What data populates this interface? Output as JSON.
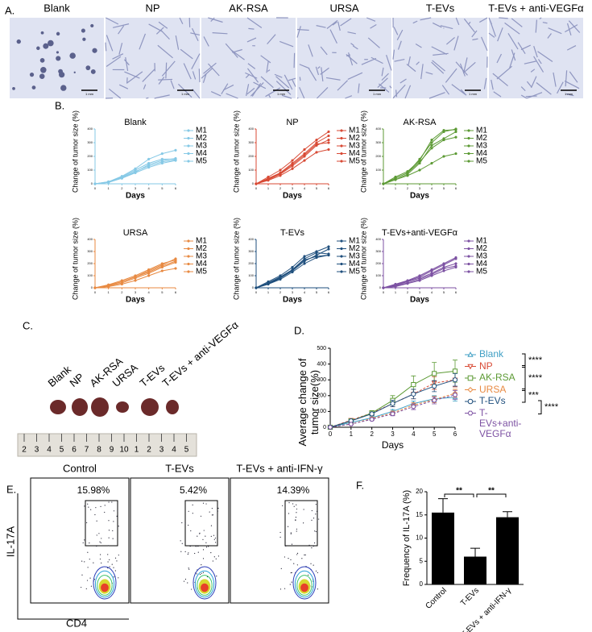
{
  "panel_letters": [
    "A.",
    "B.",
    "C.",
    "D.",
    "E.",
    "F."
  ],
  "panel_a": {
    "labels": [
      "Blank",
      "NP",
      "AK-RSA",
      "URSA",
      "T-EVs",
      "T-EVs + anti-VEGFα"
    ],
    "scale_label": "1 mm"
  },
  "panel_c": {
    "labels": [
      "Blank",
      "NP",
      "AK-RSA",
      "URSA",
      "T-EVs",
      "T-EVs + anti-VEGFα"
    ],
    "ruler": [
      "2",
      "3",
      "4",
      "5",
      "6",
      "7",
      "8",
      "9",
      "10",
      "1",
      "2",
      "3",
      "4",
      "5"
    ]
  },
  "panel_e": {
    "xlabel": "CD4",
    "ylabel": "IL-17A",
    "plots": [
      {
        "title": "Control",
        "gate": "15.98%"
      },
      {
        "title": "T-EVs",
        "gate": "5.42%"
      },
      {
        "title": "T-EVs + anti-IFN-γ",
        "gate": "14.39%"
      }
    ]
  },
  "chart_data": [
    {
      "type": "line",
      "title": "Blank",
      "xlabel": "Days",
      "ylabel": "Change of tumor size (%)",
      "x": [
        0,
        1,
        2,
        3,
        4,
        5,
        6
      ],
      "xlim": [
        0,
        6
      ],
      "ylim": [
        0,
        400
      ],
      "xticks": [
        0,
        1,
        2,
        3,
        4,
        5,
        6
      ],
      "yticks": [
        0,
        100,
        200,
        300,
        400
      ],
      "series": [
        {
          "name": "M1",
          "color": "#86c9e6",
          "values": [
            0,
            10,
            40,
            80,
            120,
            150,
            170
          ]
        },
        {
          "name": "M2",
          "color": "#86c9e6",
          "values": [
            0,
            12,
            45,
            90,
            130,
            160,
            175
          ]
        },
        {
          "name": "M3",
          "color": "#86c9e6",
          "values": [
            0,
            15,
            50,
            100,
            150,
            180,
            180
          ]
        },
        {
          "name": "M4",
          "color": "#86c9e6",
          "values": [
            0,
            10,
            42,
            85,
            140,
            170,
            185
          ]
        },
        {
          "name": "M5",
          "color": "#86c9e6",
          "values": [
            0,
            15,
            55,
            110,
            180,
            220,
            245
          ]
        }
      ]
    },
    {
      "type": "line",
      "title": "NP",
      "xlabel": "Days",
      "ylabel": "Change of tumor size (%)",
      "x": [
        0,
        1,
        2,
        3,
        4,
        5,
        6
      ],
      "xlim": [
        0,
        6
      ],
      "ylim": [
        0,
        400
      ],
      "xticks": [
        0,
        1,
        2,
        3,
        4,
        5,
        6
      ],
      "yticks": [
        0,
        100,
        200,
        300,
        400
      ],
      "series": [
        {
          "name": "M1",
          "color": "#d84a35",
          "values": [
            0,
            40,
            80,
            150,
            220,
            300,
            350
          ]
        },
        {
          "name": "M2",
          "color": "#d84a35",
          "values": [
            0,
            30,
            70,
            130,
            200,
            280,
            320
          ]
        },
        {
          "name": "M3",
          "color": "#d84a35",
          "values": [
            0,
            50,
            100,
            170,
            250,
            320,
            380
          ]
        },
        {
          "name": "M4",
          "color": "#d84a35",
          "values": [
            0,
            35,
            75,
            140,
            210,
            290,
            300
          ]
        },
        {
          "name": "M5",
          "color": "#d84a35",
          "values": [
            0,
            25,
            60,
            110,
            170,
            230,
            250
          ]
        }
      ]
    },
    {
      "type": "line",
      "title": "AK-RSA",
      "xlabel": "Days",
      "ylabel": "Change of tumor size (%)",
      "x": [
        0,
        1,
        2,
        3,
        4,
        5,
        6
      ],
      "xlim": [
        0,
        6
      ],
      "ylim": [
        0,
        400
      ],
      "xticks": [
        0,
        1,
        2,
        3,
        4,
        5,
        6
      ],
      "yticks": [
        0,
        100,
        200,
        300,
        400
      ],
      "series": [
        {
          "name": "M1",
          "color": "#5c9a34",
          "values": [
            0,
            40,
            80,
            180,
            300,
            380,
            400
          ]
        },
        {
          "name": "M2",
          "color": "#5c9a34",
          "values": [
            0,
            50,
            90,
            170,
            320,
            390,
            395
          ]
        },
        {
          "name": "M3",
          "color": "#5c9a34",
          "values": [
            0,
            30,
            70,
            150,
            280,
            330,
            380
          ]
        },
        {
          "name": "M4",
          "color": "#5c9a34",
          "values": [
            0,
            40,
            80,
            160,
            260,
            320,
            340
          ]
        },
        {
          "name": "M5",
          "color": "#5c9a34",
          "values": [
            0,
            30,
            60,
            100,
            150,
            200,
            220
          ]
        }
      ]
    },
    {
      "type": "line",
      "title": "URSA",
      "xlabel": "Days",
      "ylabel": "Change of tumor size (%)",
      "x": [
        0,
        1,
        2,
        3,
        4,
        5,
        6
      ],
      "xlim": [
        0,
        6
      ],
      "ylim": [
        0,
        400
      ],
      "xticks": [
        0,
        1,
        2,
        3,
        4,
        5,
        6
      ],
      "yticks": [
        0,
        100,
        200,
        300,
        400
      ],
      "series": [
        {
          "name": "M1",
          "color": "#e88a42",
          "values": [
            0,
            20,
            50,
            90,
            140,
            190,
            240
          ]
        },
        {
          "name": "M2",
          "color": "#e88a42",
          "values": [
            0,
            25,
            60,
            100,
            150,
            200,
            230
          ]
        },
        {
          "name": "M3",
          "color": "#e88a42",
          "values": [
            0,
            15,
            40,
            80,
            120,
            170,
            210
          ]
        },
        {
          "name": "M4",
          "color": "#e88a42",
          "values": [
            0,
            20,
            50,
            90,
            130,
            180,
            220
          ]
        },
        {
          "name": "M5",
          "color": "#e88a42",
          "values": [
            0,
            10,
            30,
            60,
            100,
            140,
            160
          ]
        }
      ]
    },
    {
      "type": "line",
      "title": "T-EVs",
      "xlabel": "Days",
      "ylabel": "Change of tumor size (%)",
      "x": [
        0,
        1,
        2,
        3,
        4,
        5,
        6
      ],
      "xlim": [
        0,
        6
      ],
      "ylim": [
        0,
        400
      ],
      "xticks": [
        0,
        1,
        2,
        3,
        4,
        5,
        6
      ],
      "yticks": [
        0,
        100,
        200,
        300,
        400
      ],
      "series": [
        {
          "name": "M1",
          "color": "#1f4f7d",
          "values": [
            0,
            50,
            100,
            170,
            260,
            300,
            340
          ]
        },
        {
          "name": "M2",
          "color": "#1f4f7d",
          "values": [
            0,
            40,
            90,
            150,
            240,
            290,
            280
          ]
        },
        {
          "name": "M3",
          "color": "#1f4f7d",
          "values": [
            0,
            30,
            80,
            140,
            220,
            270,
            320
          ]
        },
        {
          "name": "M4",
          "color": "#1f4f7d",
          "values": [
            0,
            35,
            85,
            145,
            230,
            260,
            270
          ]
        },
        {
          "name": "M5",
          "color": "#1f4f7d",
          "values": [
            0,
            30,
            70,
            130,
            200,
            250,
            270
          ]
        }
      ]
    },
    {
      "type": "line",
      "title": "T-EVs+anti-VEGFα",
      "xlabel": "Days",
      "ylabel": "Change of tumor size (%)",
      "x": [
        0,
        1,
        2,
        3,
        4,
        5,
        6
      ],
      "xlim": [
        0,
        6
      ],
      "ylim": [
        0,
        400
      ],
      "xticks": [
        0,
        1,
        2,
        3,
        4,
        5,
        6
      ],
      "yticks": [
        0,
        100,
        200,
        300,
        400
      ],
      "series": [
        {
          "name": "M1",
          "color": "#7d52a3",
          "values": [
            0,
            30,
            60,
            100,
            150,
            200,
            250
          ]
        },
        {
          "name": "M2",
          "color": "#7d52a3",
          "values": [
            0,
            25,
            55,
            90,
            140,
            190,
            240
          ]
        },
        {
          "name": "M3",
          "color": "#7d52a3",
          "values": [
            0,
            20,
            50,
            80,
            120,
            170,
            200
          ]
        },
        {
          "name": "M4",
          "color": "#7d52a3",
          "values": [
            0,
            15,
            40,
            70,
            110,
            160,
            180
          ]
        },
        {
          "name": "M5",
          "color": "#7d52a3",
          "values": [
            0,
            10,
            35,
            60,
            100,
            140,
            170
          ]
        }
      ]
    },
    {
      "type": "errorline",
      "xlabel": "Days",
      "ylabel": "Average change of tumor size(%)",
      "x": [
        0,
        1,
        2,
        3,
        4,
        5,
        6
      ],
      "xlim": [
        0,
        6
      ],
      "ylim": [
        0,
        500
      ],
      "xticks": [
        0,
        1,
        2,
        3,
        4,
        5,
        6
      ],
      "yticks": [
        0,
        100,
        200,
        300,
        400,
        500
      ],
      "series": [
        {
          "name": "Blank",
          "color": "#3f9fc4",
          "marker": "triangle",
          "values": [
            0,
            30,
            60,
            100,
            150,
            180,
            190
          ],
          "errors": [
            0,
            5,
            8,
            12,
            15,
            20,
            25
          ]
        },
        {
          "name": "NP",
          "color": "#d84a35",
          "marker": "triangle-down",
          "values": [
            0,
            45,
            90,
            150,
            210,
            280,
            300
          ],
          "errors": [
            0,
            8,
            12,
            20,
            30,
            40,
            45
          ]
        },
        {
          "name": "AK-RSA",
          "color": "#5c9a34",
          "marker": "square",
          "values": [
            0,
            40,
            90,
            170,
            270,
            340,
            355
          ],
          "errors": [
            0,
            10,
            15,
            30,
            55,
            70,
            70
          ]
        },
        {
          "name": "URSA",
          "color": "#e88a42",
          "marker": "diamond",
          "values": [
            0,
            20,
            55,
            90,
            140,
            175,
            215
          ],
          "errors": [
            0,
            5,
            8,
            12,
            15,
            20,
            25
          ]
        },
        {
          "name": "T-EVs",
          "color": "#1f4f7d",
          "marker": "circle",
          "values": [
            0,
            40,
            85,
            150,
            210,
            260,
            300
          ],
          "errors": [
            0,
            6,
            10,
            20,
            30,
            35,
            40
          ]
        },
        {
          "name": "T-EVs+anti-VEGFα",
          "color": "#7d52a3",
          "marker": "hexagon",
          "values": [
            0,
            20,
            50,
            85,
            130,
            170,
            205
          ],
          "errors": [
            0,
            5,
            8,
            12,
            18,
            22,
            28
          ]
        }
      ],
      "significance": [
        "****",
        "****",
        "***",
        "****"
      ]
    },
    {
      "type": "bar",
      "ylabel": "Frequency of IL-17A (%)",
      "categories": [
        "Control",
        "T-EVs",
        "T-EVs + anti-IFN-γ"
      ],
      "values": [
        15.5,
        6,
        14.5
      ],
      "errors": [
        3,
        1.8,
        1.2
      ],
      "color": "#000000",
      "ylim": [
        0,
        20
      ],
      "yticks": [
        0,
        5,
        10,
        15,
        20
      ],
      "significance": [
        "**",
        "**"
      ]
    }
  ]
}
